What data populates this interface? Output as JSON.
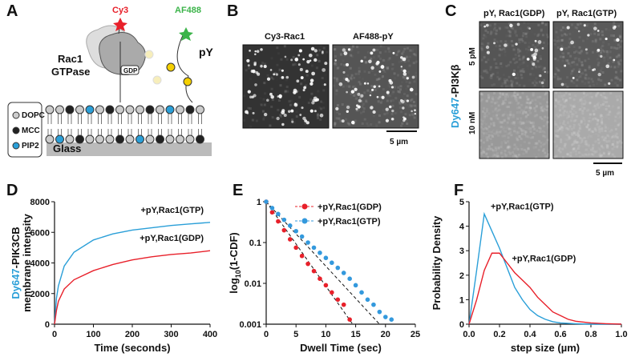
{
  "panels": {
    "letters": [
      "A",
      "B",
      "C",
      "D",
      "E",
      "F"
    ],
    "A": {
      "cy3": "Cy3",
      "af488": "AF488",
      "rac1": "Rac1",
      "gtpase": "GTPase",
      "gdp": "GDP",
      "py": "pY",
      "dopc": "DOPC",
      "mcc": "MCC",
      "pip2": "PIP2",
      "glass": "Glass"
    },
    "B": {
      "titles": [
        "Cy3-Rac1",
        "AF488-pY"
      ],
      "scale": "5 µm"
    },
    "C": {
      "titles": [
        "pY, Rac1(GDP)",
        "pY, Rac1(GTP)"
      ],
      "label_prefix": "Dy647",
      "label": "-PI3Kβ",
      "rows": [
        "5 pM",
        "10 nM"
      ],
      "scale": "5 µm"
    }
  },
  "chart_data": [
    {
      "type": "line",
      "ylabel_prefix": "Dy647",
      "ylabel": "-PIK3CB",
      "ylabel_line2": "membrane intensity",
      "xlabel": "Time (seconds)",
      "xlim": [
        0,
        400
      ],
      "xticks": [
        0,
        100,
        200,
        300,
        400
      ],
      "ylim": [
        0,
        8000
      ],
      "yticks": [
        0,
        2000,
        4000,
        6000,
        8000
      ],
      "series_labels": "inline",
      "series": [
        {
          "name": "+pY,Rac1(GTP)",
          "color": "#2a9fd8",
          "x": [
            0,
            5,
            10,
            25,
            50,
            100,
            150,
            200,
            250,
            300,
            350,
            400
          ],
          "values": [
            0,
            1700,
            2500,
            3800,
            4700,
            5500,
            5900,
            6150,
            6300,
            6450,
            6550,
            6650
          ]
        },
        {
          "name": "+pY,Rac1(GDP)",
          "color": "#e8202a",
          "x": [
            0,
            5,
            10,
            25,
            50,
            100,
            150,
            200,
            250,
            300,
            350,
            400
          ],
          "values": [
            0,
            900,
            1500,
            2300,
            2900,
            3500,
            3900,
            4200,
            4400,
            4550,
            4650,
            4800
          ]
        }
      ]
    },
    {
      "type": "scatter",
      "log_y": true,
      "ylabel": {
        "text": "log",
        "sub": "10",
        "rest": "(1-CDF)"
      },
      "xlabel": "Dwell Time (sec)",
      "xlim": [
        0,
        25
      ],
      "xticks": [
        0,
        5,
        10,
        15,
        20,
        25
      ],
      "ylim": [
        0.001,
        1
      ],
      "yticks": [
        1,
        0.1,
        0.01,
        0.001
      ],
      "legend": "upper right",
      "series": [
        {
          "name": "+pY,Rac1(GDP)",
          "color": "#e8202a",
          "x": [
            0,
            1,
            2,
            3,
            4,
            5,
            6,
            7,
            8,
            9,
            10,
            11,
            12,
            13,
            14
          ],
          "values": [
            1,
            0.55,
            0.33,
            0.2,
            0.12,
            0.075,
            0.047,
            0.03,
            0.02,
            0.013,
            0.009,
            0.006,
            0.004,
            0.003,
            0.0013
          ],
          "fit_x": [
            0,
            14.5
          ],
          "fit_values": [
            1,
            0.001
          ]
        },
        {
          "name": "+pY,Rac1(GTP)",
          "color": "#3399dd",
          "x": [
            0,
            1,
            2,
            3,
            4,
            5,
            6,
            7,
            8,
            9,
            10,
            11,
            12,
            13,
            14,
            15,
            16,
            17,
            18,
            19,
            20,
            21
          ],
          "values": [
            1,
            0.7,
            0.5,
            0.36,
            0.26,
            0.19,
            0.14,
            0.1,
            0.075,
            0.056,
            0.042,
            0.032,
            0.024,
            0.018,
            0.013,
            0.009,
            0.006,
            0.004,
            0.003,
            0.002,
            0.0015,
            0.0013
          ],
          "fit_x": [
            0,
            19
          ],
          "fit_values": [
            1,
            0.001
          ]
        }
      ]
    },
    {
      "type": "line",
      "ylabel": "Probability Density",
      "xlabel": "step size (µm)",
      "xlim": [
        0,
        1
      ],
      "xticks": [
        {
          "value": 0,
          "label": "0.0"
        },
        0.2,
        0.4,
        0.6,
        0.8,
        {
          "value": 1,
          "label": "1.0"
        }
      ],
      "ylim": [
        0,
        5
      ],
      "yticks": [
        0,
        1,
        2,
        3,
        4,
        5
      ],
      "series_labels": "inline",
      "series": [
        {
          "name": "+pY,Rac1(GTP)",
          "color": "#2a9fd8",
          "x": [
            0,
            0.05,
            0.1,
            0.15,
            0.2,
            0.25,
            0.3,
            0.35,
            0.4,
            0.45,
            0.5,
            0.55,
            0.6,
            0.7,
            0.8,
            0.9,
            1
          ],
          "values": [
            0,
            2.2,
            4.5,
            3.8,
            3.1,
            2.3,
            1.5,
            1,
            0.6,
            0.35,
            0.2,
            0.1,
            0.05,
            0.02,
            0,
            0,
            0
          ]
        },
        {
          "name": "+pY,Rac1(GDP)",
          "color": "#e8202a",
          "x": [
            0,
            0.05,
            0.1,
            0.15,
            0.2,
            0.25,
            0.3,
            0.35,
            0.4,
            0.45,
            0.5,
            0.55,
            0.6,
            0.65,
            0.7,
            0.8,
            0.9,
            1
          ],
          "values": [
            0,
            1,
            2.2,
            2.9,
            2.9,
            2.5,
            2.1,
            1.8,
            1.5,
            1.1,
            0.8,
            0.5,
            0.35,
            0.2,
            0.12,
            0.05,
            0.02,
            0
          ]
        }
      ]
    }
  ]
}
